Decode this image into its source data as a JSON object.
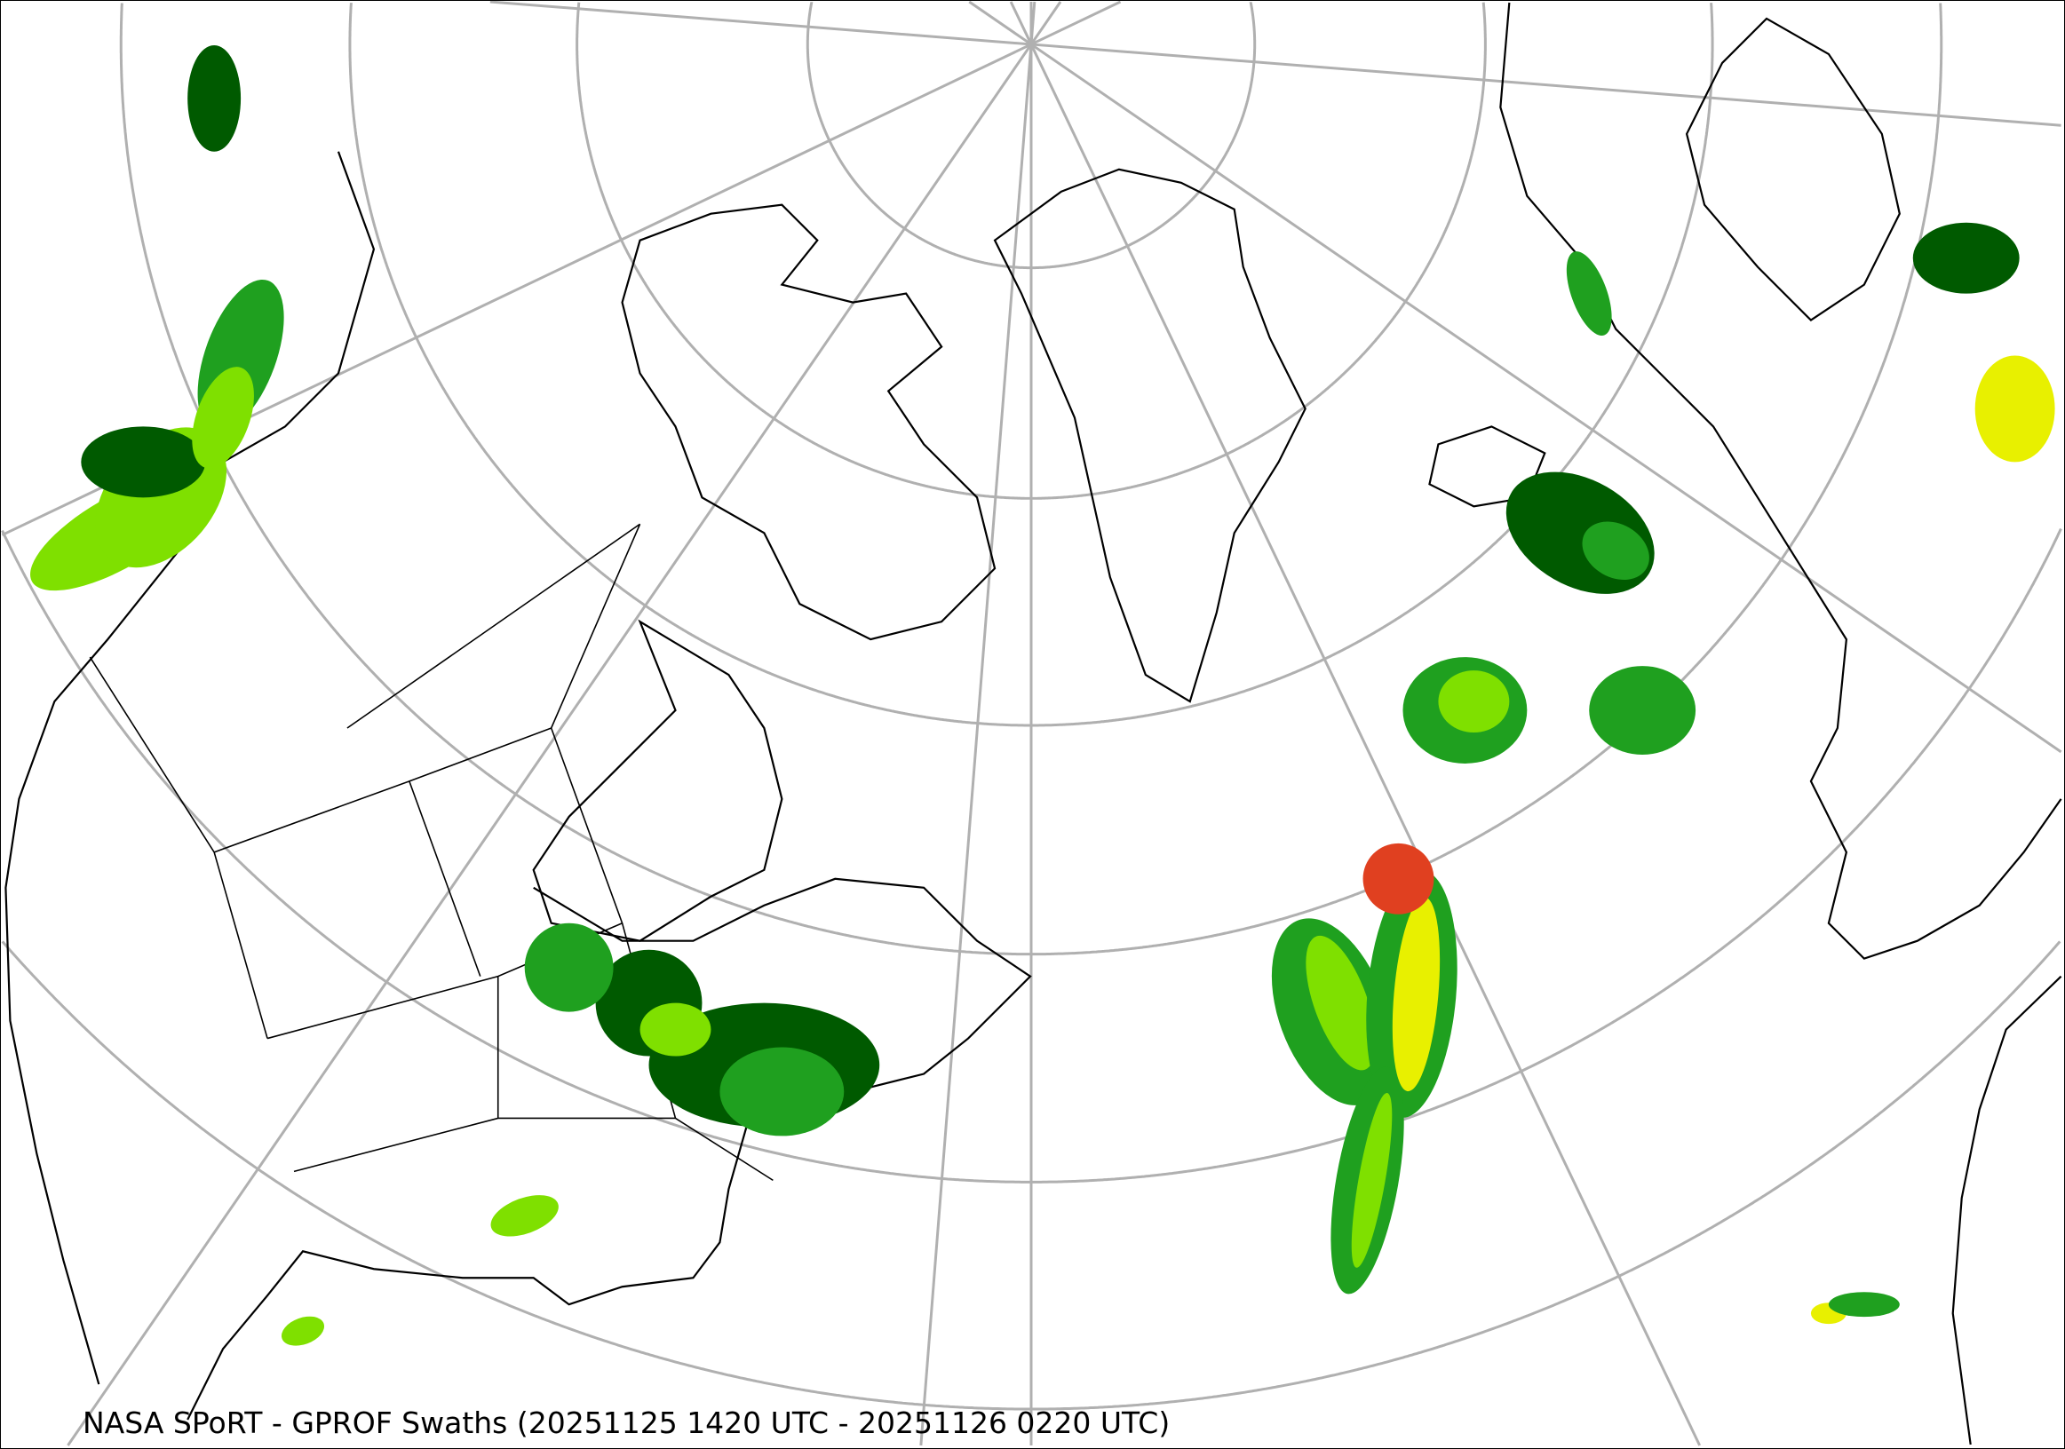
{
  "caption": "NASA SPoRT - GPROF Swaths (20251125 1420 UTC - 20251126 0220 UTC)",
  "map": {
    "projection": "north-polar-stereographic",
    "colors": {
      "graticule": "#b0b0b0",
      "coastline": "#000000",
      "precip_light": "#005a00",
      "precip_mid": "#1fa01f",
      "precip_moderate": "#7fe000",
      "precip_heavy": "#e8f000",
      "precip_intense": "#e04020"
    }
  }
}
